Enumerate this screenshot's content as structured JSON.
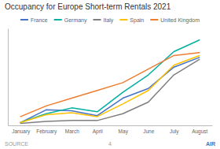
{
  "chart_data": {
    "type": "line",
    "title": "Occupancy for Europe Short-term Rentals 2021",
    "categories": [
      "January",
      "February",
      "March",
      "April",
      "May",
      "June",
      "July",
      "August"
    ],
    "series": [
      {
        "name": "France",
        "color": "#4472C4",
        "values": [
          0.03,
          0.16,
          0.15,
          0.1,
          0.28,
          0.38,
          0.6,
          0.7
        ]
      },
      {
        "name": "Germany",
        "color": "#00B0A0",
        "values": [
          0.03,
          0.12,
          0.18,
          0.14,
          0.34,
          0.52,
          0.76,
          0.88
        ]
      },
      {
        "name": "Italy",
        "color": "#7F7F7F",
        "values": [
          0.02,
          0.04,
          0.05,
          0.05,
          0.12,
          0.24,
          0.52,
          0.68
        ]
      },
      {
        "name": "Spain",
        "color": "#FFC000",
        "values": [
          0.03,
          0.11,
          0.13,
          0.09,
          0.22,
          0.36,
          0.62,
          0.72
        ]
      },
      {
        "name": "United Kingdom",
        "color": "#ED7D31",
        "values": [
          0.09,
          0.2,
          0.28,
          0.36,
          0.44,
          0.58,
          0.72,
          0.75
        ]
      }
    ],
    "ylim": [
      0.0,
      1.0
    ],
    "grid": false,
    "legend": "top",
    "tick_labels": "x",
    "annotations": [
      "SOURCE",
      "AIR",
      "4"
    ]
  }
}
